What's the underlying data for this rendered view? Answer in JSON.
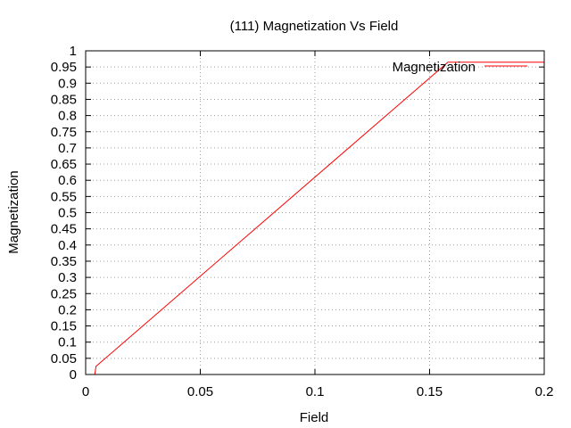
{
  "chart_data": {
    "type": "line",
    "title": "(111) Magnetization Vs Field",
    "xlabel": "Field",
    "ylabel": "Magnetization",
    "xlim": [
      0,
      0.2
    ],
    "ylim": [
      0,
      1
    ],
    "xticks": [
      "0",
      "0.05",
      "0.1",
      "0.15",
      "0.2"
    ],
    "yticks": [
      "0",
      "0.05",
      "0.1",
      "0.15",
      "0.2",
      "0.25",
      "0.3",
      "0.35",
      "0.4",
      "0.45",
      "0.5",
      "0.55",
      "0.6",
      "0.65",
      "0.7",
      "0.75",
      "0.8",
      "0.85",
      "0.9",
      "0.95",
      "1"
    ],
    "grid": true,
    "legend_position": "top-right",
    "series": [
      {
        "name": "Magnetization",
        "color": "#ff0000",
        "x": [
          0.0035,
          0.004,
          0.0045,
          0.158,
          0.2
        ],
        "y": [
          0.0,
          0.0,
          0.025,
          0.965,
          0.965
        ]
      }
    ]
  }
}
